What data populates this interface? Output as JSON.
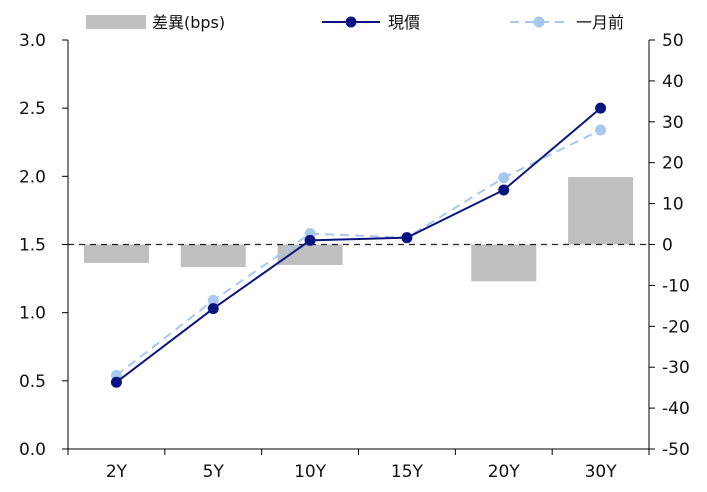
{
  "chart_data": {
    "type": "bar+line",
    "categories": [
      "2Y",
      "5Y",
      "10Y",
      "15Y",
      "20Y",
      "30Y"
    ],
    "left_axis": {
      "ylim": [
        0.0,
        3.0
      ],
      "ticks": [
        "0.0",
        "0.5",
        "1.0",
        "1.5",
        "2.0",
        "2.5",
        "3.0"
      ]
    },
    "right_axis": {
      "ylim": [
        -50,
        50
      ],
      "ticks": [
        "-50",
        "-40",
        "-30",
        "-20",
        "-10",
        "0",
        "10",
        "20",
        "30",
        "40",
        "50"
      ]
    },
    "zero_line_dashed": true,
    "legend_position": "top",
    "series": [
      {
        "name": "差異(bps)",
        "kind": "bar",
        "axis": "right",
        "color": "#bfbfbf",
        "values": [
          -4.5,
          -5.5,
          -5,
          0,
          -9,
          16.5
        ]
      },
      {
        "name": "現價",
        "kind": "line",
        "axis": "left",
        "color": "#0a1480",
        "style": "solid",
        "values": [
          0.49,
          1.03,
          1.53,
          1.55,
          1.9,
          2.5
        ]
      },
      {
        "name": "一月前",
        "kind": "line",
        "axis": "left",
        "color": "#a8c8f0",
        "style": "dashed",
        "values": [
          0.54,
          1.09,
          1.58,
          1.55,
          1.99,
          2.34
        ]
      }
    ]
  }
}
